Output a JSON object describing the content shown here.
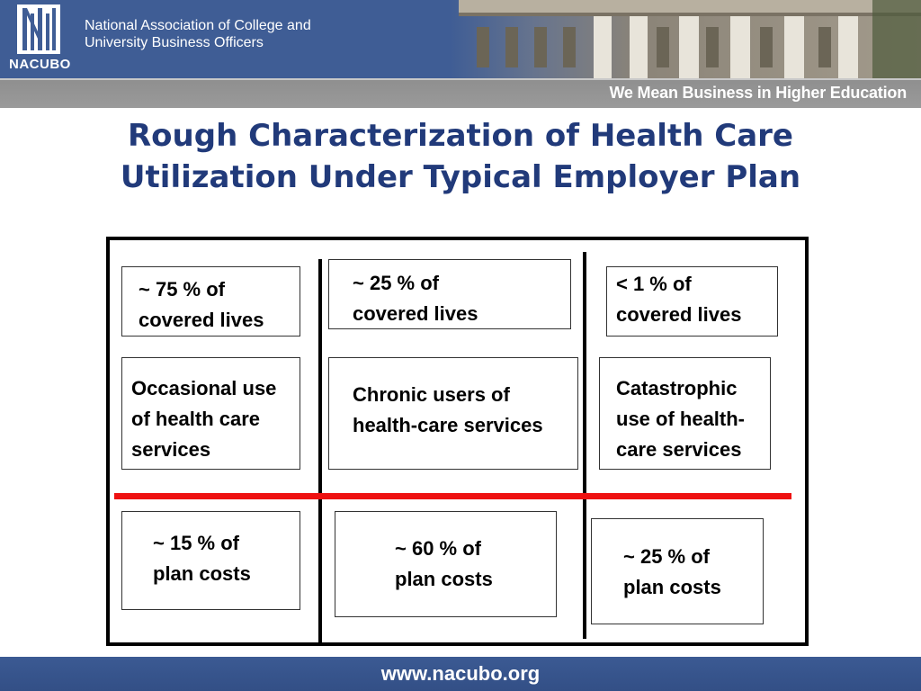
{
  "header": {
    "logo_text": "NACUBO",
    "org_name_line1": "National Association of College and",
    "org_name_line2": "University Business Officers",
    "tagline": "We Mean Business in Higher Education"
  },
  "slide": {
    "title_line1": "Rough Characterization of Health Care",
    "title_line2": "Utilization Under Typical Employer Plan"
  },
  "diagram": {
    "columns": [
      {
        "share_lines": [
          "~ 75 % of",
          "covered lives"
        ],
        "use_lines": [
          "Occasional use",
          "of health care",
          "services"
        ],
        "cost_lines": [
          "~ 15 % of",
          "plan costs"
        ]
      },
      {
        "share_lines": [
          "~ 25 % of",
          "covered lives"
        ],
        "use_lines": [
          "Chronic users of",
          "health-care services"
        ],
        "cost_lines": [
          "~ 60 % of",
          "plan costs"
        ]
      },
      {
        "share_lines": [
          "< 1 % of",
          "covered lives"
        ],
        "use_lines": [
          "Catastrophic",
          "use of health-",
          "care services"
        ],
        "cost_lines": [
          "~ 25 % of",
          "plan costs"
        ]
      }
    ],
    "divider_color": "#ee1111"
  },
  "footer": {
    "url": "www.nacubo.org"
  },
  "colors": {
    "brand_blue": "#3f5d95",
    "title_blue": "#213a7a",
    "tagbar_gray": "#969696"
  }
}
